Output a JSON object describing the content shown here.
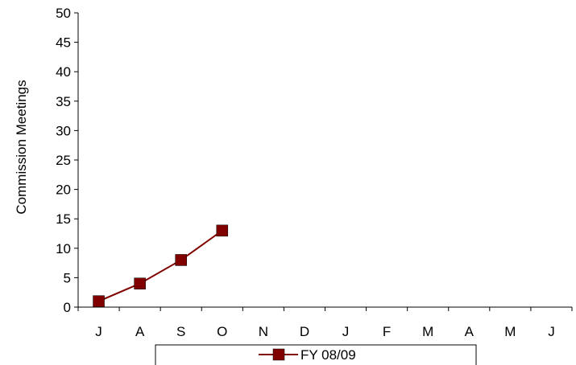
{
  "chart_data": {
    "type": "line",
    "title": "",
    "xlabel": "",
    "ylabel": "Commission Meetings",
    "categories": [
      "J",
      "A",
      "S",
      "O",
      "N",
      "D",
      "J",
      "F",
      "M",
      "A",
      "M",
      "J"
    ],
    "ylim": [
      0,
      50
    ],
    "yticks": [
      0,
      5,
      10,
      15,
      20,
      25,
      30,
      35,
      40,
      45,
      50
    ],
    "grid": false,
    "legend_position": "bottom",
    "series": [
      {
        "name": "FY 08/09",
        "color": "#800000",
        "marker": "square",
        "values": [
          1,
          4,
          8,
          13,
          null,
          null,
          null,
          null,
          null,
          null,
          null,
          null
        ]
      }
    ]
  }
}
